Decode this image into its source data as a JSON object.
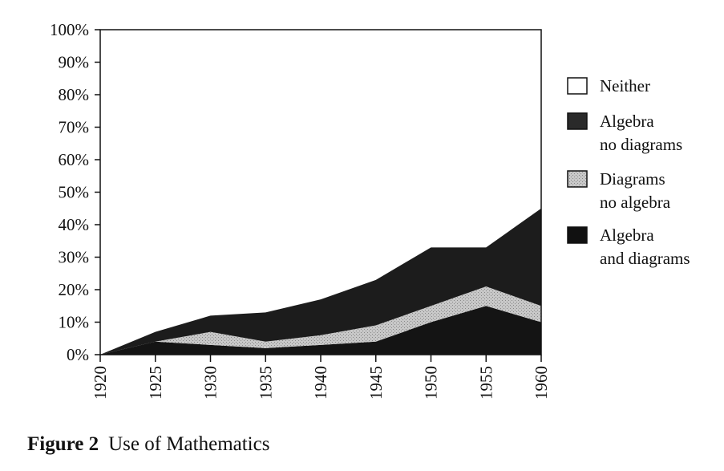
{
  "caption": {
    "figure_number": "Figure 2",
    "title": "Use of Mathematics"
  },
  "chart_data": {
    "type": "area",
    "stacked": true,
    "title": "",
    "xlabel": "",
    "ylabel": "",
    "x": [
      1920,
      1925,
      1930,
      1935,
      1940,
      1945,
      1950,
      1955,
      1960
    ],
    "x_ticks": [
      "1920",
      "1925",
      "1930",
      "1935",
      "1940",
      "1945",
      "1950",
      "1955",
      "1960"
    ],
    "y_ticks": [
      "0%",
      "10%",
      "20%",
      "30%",
      "40%",
      "50%",
      "60%",
      "70%",
      "80%",
      "90%",
      "100%"
    ],
    "ylim": [
      0,
      100
    ],
    "series": [
      {
        "name": "Algebra and diagrams",
        "values": [
          0,
          4,
          3,
          2,
          3,
          4,
          10,
          15,
          10
        ],
        "color": "#141414"
      },
      {
        "name": "Diagrams no algebra",
        "values": [
          0,
          0,
          4,
          2,
          3,
          5,
          5,
          6,
          5
        ],
        "color": "#b8b8b8"
      },
      {
        "name": "Algebra no diagrams",
        "values": [
          0,
          3,
          5,
          9,
          11,
          14,
          18,
          12,
          30
        ],
        "color": "#1c1c1c"
      },
      {
        "name": "Neither",
        "values": [
          100,
          93,
          88,
          87,
          83,
          77,
          67,
          67,
          55
        ],
        "color": "#ffffff"
      }
    ],
    "legend": {
      "position": "right",
      "items": [
        {
          "lines": [
            "Neither"
          ],
          "color": "#ffffff"
        },
        {
          "lines": [
            "Algebra",
            "no diagrams"
          ],
          "color": "#2a2a2a"
        },
        {
          "lines": [
            "Diagrams",
            "no algebra"
          ],
          "color": "#c4c4c4"
        },
        {
          "lines": [
            "Algebra",
            "and diagrams"
          ],
          "color": "#111111"
        }
      ]
    }
  }
}
